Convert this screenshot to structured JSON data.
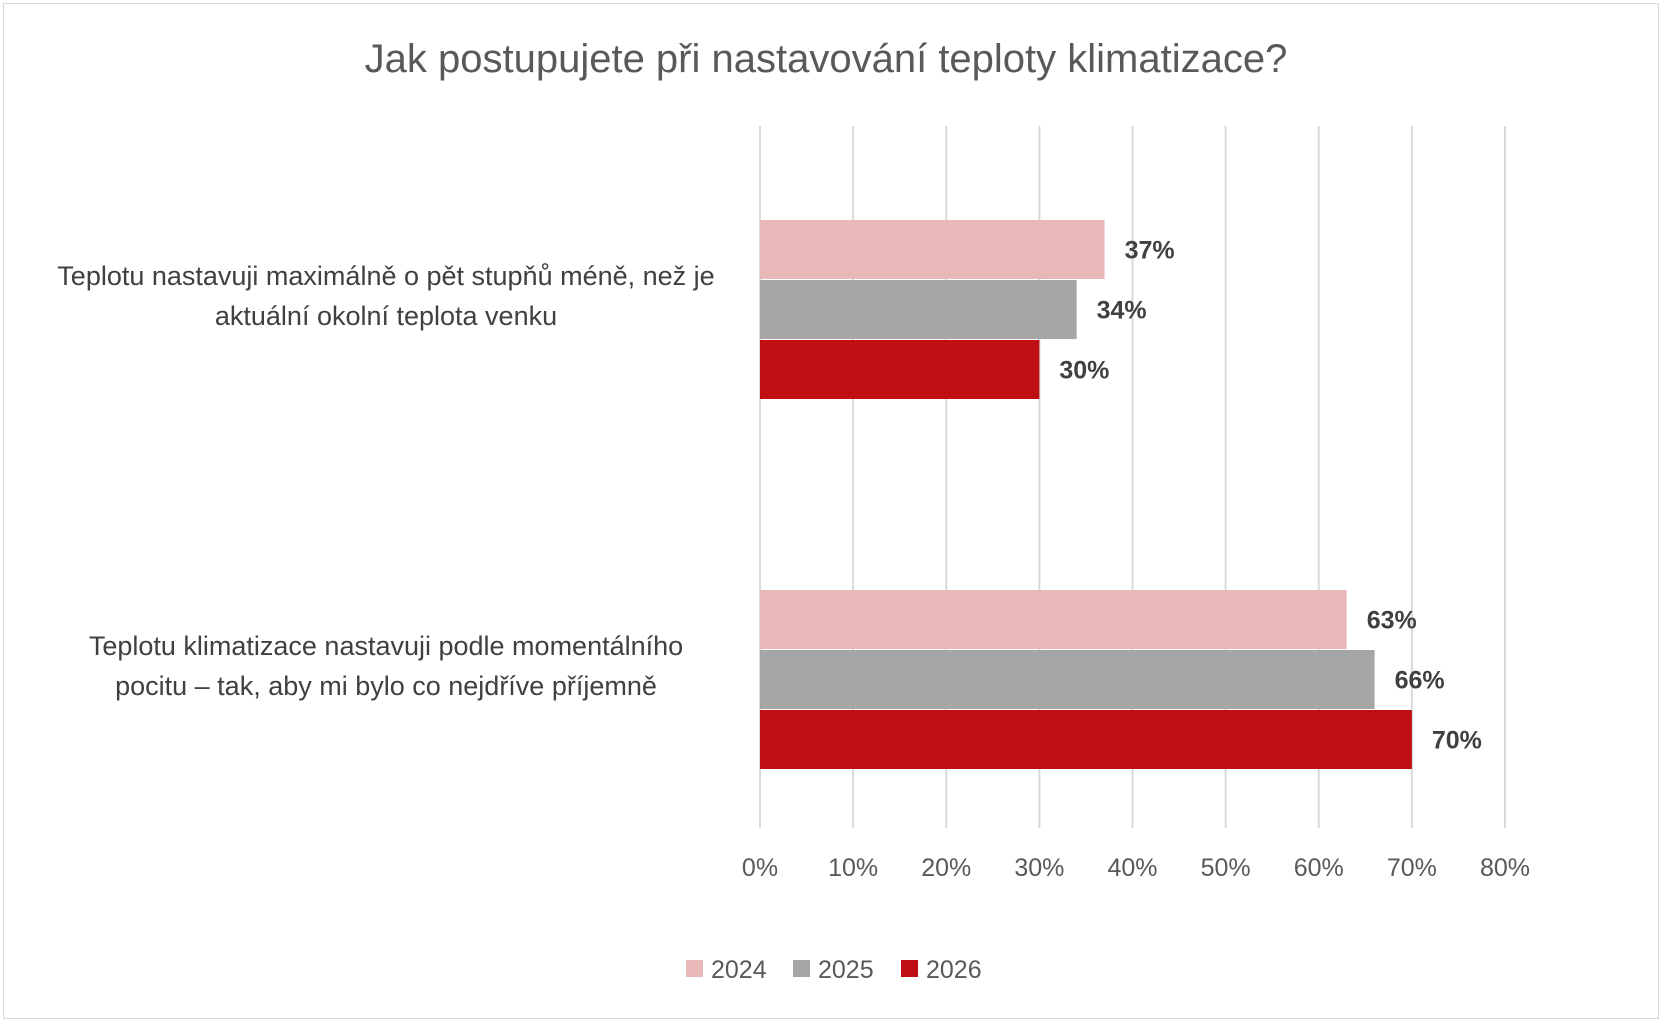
{
  "chart_data": {
    "type": "bar",
    "orientation": "horizontal",
    "title": "Jak postupujete při nastavování teploty klimatizace?",
    "categories": [
      [
        "Teplotu nastavuji maximálně o pět stupňů méně, než je",
        "aktuální okolní teplota venku"
      ],
      [
        "Teplotu klimatizace nastavuji podle momentálního",
        "pocitu – tak, aby mi bylo co nejdříve příjemně"
      ]
    ],
    "series": [
      {
        "name": "2024",
        "color": "#E8B8B8",
        "values": [
          37,
          63
        ],
        "labels": [
          "37%",
          "63%"
        ]
      },
      {
        "name": "2025",
        "color": "#A6A6A6",
        "values": [
          34,
          66
        ],
        "labels": [
          "34%",
          "66%"
        ]
      },
      {
        "name": "2026",
        "color": "#C00F12",
        "values": [
          30,
          70
        ],
        "labels": [
          "30%",
          "70%"
        ]
      }
    ],
    "xlim": [
      0,
      80
    ],
    "xticks": [
      0,
      10,
      20,
      30,
      40,
      50,
      60,
      70,
      80
    ],
    "xtick_labels": [
      "0%",
      "10%",
      "20%",
      "30%",
      "40%",
      "50%",
      "60%",
      "70%",
      "80%"
    ],
    "xlabel": "",
    "ylabel": "",
    "grid": "vertical",
    "legend": "bottom"
  },
  "colors": {
    "gridline": "#D9D9D9",
    "text": "#595959"
  }
}
